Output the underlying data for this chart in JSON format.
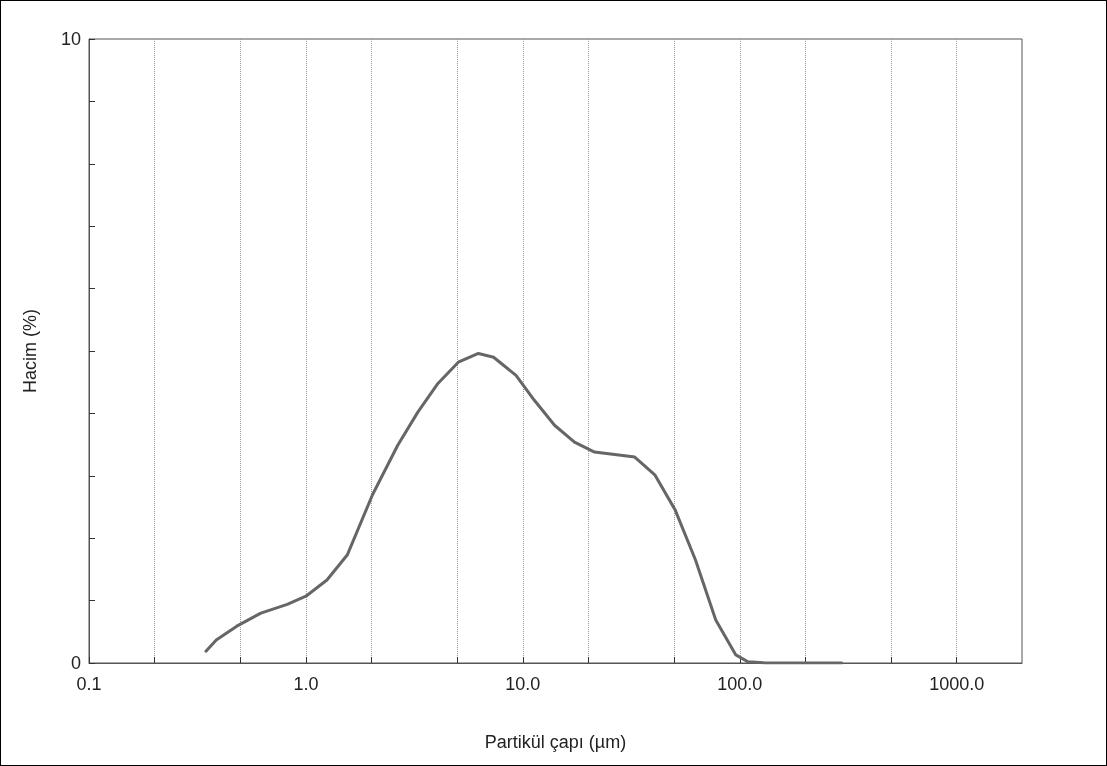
{
  "chart_data": {
    "type": "line",
    "xlabel": "Partikül çapı (µm)",
    "ylabel": "Hacim (%)",
    "log": "x",
    "xlim": [
      0.1,
      2000
    ],
    "ylim": [
      0,
      10
    ],
    "xticks": [
      {
        "value": 0.1,
        "label": "0.1"
      },
      {
        "value": 0.2,
        "label": null
      },
      {
        "value": 0.5,
        "label": null
      },
      {
        "value": 1,
        "label": "1.0"
      },
      {
        "value": 2,
        "label": null
      },
      {
        "value": 5,
        "label": null
      },
      {
        "value": 10,
        "label": "10.0"
      },
      {
        "value": 20,
        "label": null
      },
      {
        "value": 50,
        "label": null
      },
      {
        "value": 100,
        "label": "100.0"
      },
      {
        "value": 200,
        "label": null
      },
      {
        "value": 500,
        "label": null
      },
      {
        "value": 1000,
        "label": "1000.0"
      }
    ],
    "yticks": [
      0,
      {
        "value": 1,
        "label": null
      },
      {
        "value": 2,
        "label": null
      },
      {
        "value": 3,
        "label": null
      },
      {
        "value": 4,
        "label": null
      },
      {
        "value": 5,
        "label": null
      },
      {
        "value": 6,
        "label": null
      },
      {
        "value": 7,
        "label": null
      },
      {
        "value": 8,
        "label": null
      },
      {
        "value": 9,
        "label": null
      },
      10
    ],
    "grid": "x",
    "marker": "none",
    "line_style": "solid",
    "series": [
      {
        "color": "#666666",
        "x": [
          0.346,
          0.386,
          0.48,
          0.62,
          0.82,
          1.0,
          1.25,
          1.55,
          2.03,
          2.65,
          3.28,
          4.06,
          5.04,
          6.24,
          7.33,
          9.3,
          11.3,
          14.0,
          17.3,
          21.4,
          26.5,
          32.8,
          40.7,
          50.4,
          62.5,
          77.5,
          95.9,
          109,
          132,
          295
        ],
        "values": [
          0.19,
          0.37,
          0.59,
          0.8,
          0.94,
          1.07,
          1.33,
          1.73,
          2.7,
          3.49,
          4.02,
          4.48,
          4.82,
          4.96,
          4.9,
          4.61,
          4.21,
          3.81,
          3.54,
          3.38,
          3.34,
          3.3,
          3.01,
          2.45,
          1.65,
          0.69,
          0.13,
          0.02,
          0,
          0
        ]
      }
    ]
  }
}
